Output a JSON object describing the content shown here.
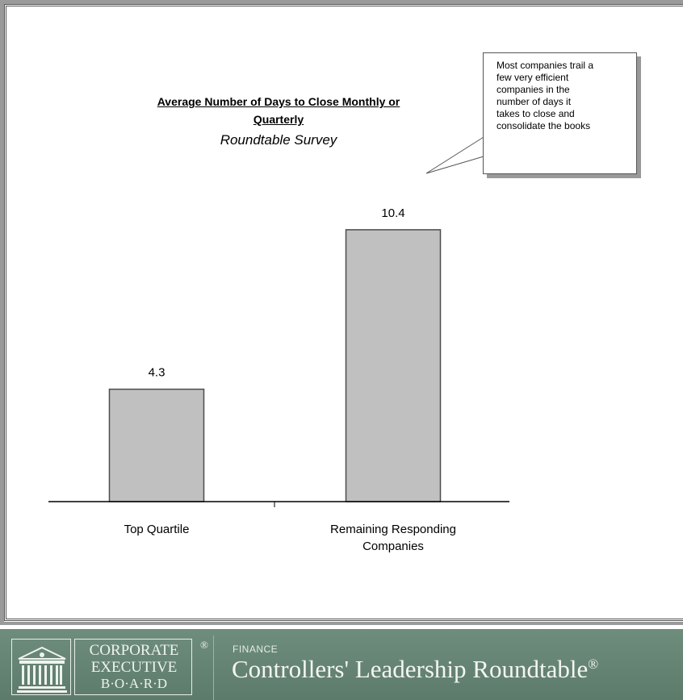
{
  "chart_data": {
    "type": "bar",
    "title_line1": "Average Number of Days to Close Monthly or",
    "title_line2": "Quarterly",
    "subtitle": "Roundtable Survey",
    "categories": [
      "Top Quartile",
      "Remaining Responding Companies"
    ],
    "category_lines": [
      [
        "Top Quartile"
      ],
      [
        "Remaining Responding",
        "Companies"
      ]
    ],
    "values": [
      4.3,
      10.4
    ],
    "value_labels": [
      "4.3",
      "10.4"
    ],
    "ylim": [
      0,
      14.9
    ],
    "grid": false,
    "bar_color": "#c0c0c0",
    "bar_border_color": "#4d4d4d"
  },
  "callout": {
    "lines": [
      "Most companies trail a",
      "few very efficient",
      "companies in the",
      "number of days it",
      "takes to close and",
      "consolidate the books"
    ]
  },
  "footer": {
    "logo_lines": [
      "CORPORATE",
      "EXECUTIVE",
      "B·O·A·R·D"
    ],
    "registered": "®",
    "section": "FINANCE",
    "program": "Controllers' Leadership Roundtable",
    "program_mark": "®",
    "background_color": "#667f72"
  }
}
